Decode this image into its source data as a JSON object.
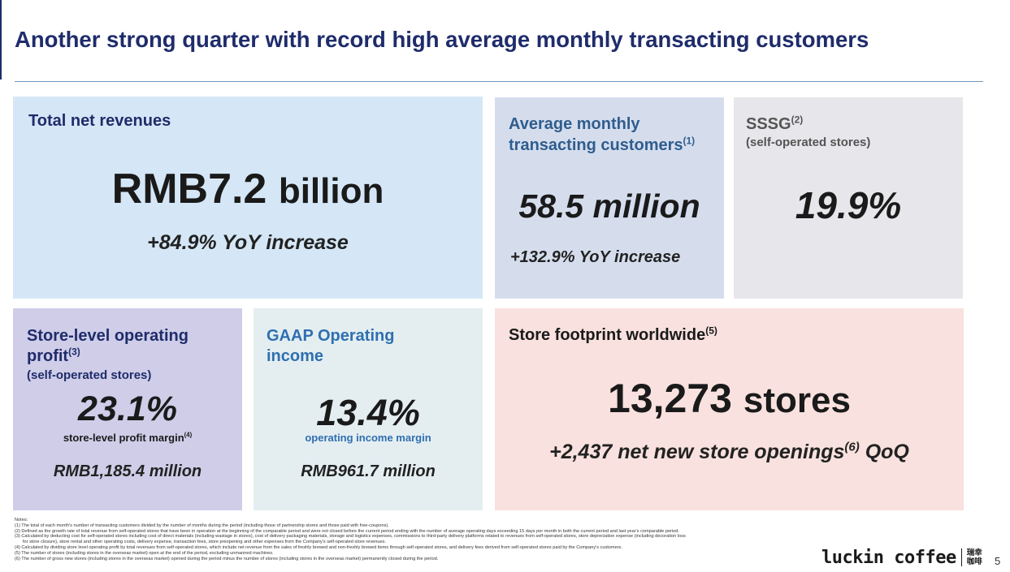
{
  "title": "Another strong quarter with record high average monthly transacting customers",
  "revenue": {
    "label": "Total net revenues",
    "value": "RMB7.2",
    "unit": "billion",
    "growth": "+84.9% YoY increase"
  },
  "mtc": {
    "label_line1": "Average monthly",
    "label_line2": "transacting customers",
    "note_ref": "(1)",
    "value": "58.5 million",
    "growth": "+132.9% YoY increase"
  },
  "sssg": {
    "label": "SSSG",
    "note_ref": "(2)",
    "sub": "(self-operated stores)",
    "value": "19.9%"
  },
  "store_profit": {
    "label_line1": "Store-level operating",
    "label_line2": "profit",
    "note_ref": "(3)",
    "sub": "(self-operated stores)",
    "value": "23.1%",
    "margin_label": "store-level profit margin",
    "margin_note_ref": "(4)",
    "amount": "RMB1,185.4 million"
  },
  "gaap": {
    "label_line1": "GAAP Operating",
    "label_line2": "income",
    "value": "13.4%",
    "margin_label": "operating income margin",
    "amount": "RMB961.7 million"
  },
  "footprint": {
    "label": "Store footprint worldwide",
    "note_ref": "(5)",
    "value": "13,273",
    "unit": "stores",
    "growth_prefix": "+2,437 net new store openings",
    "growth_note_ref": "(6)",
    "growth_suffix": "QoQ"
  },
  "notes": {
    "heading": "Notes:",
    "items": [
      "(1)  The total of each month's number of transacting customers divided by the number of months during the period (including those of partnership stores and those paid with free-coupons).",
      "(2)  Defined as the growth rate of total revenue from self-operated stores that have been in operation at the beginning of the comparable period and were not closed before the current period ending with the number of average operating days exceeding 15 days per month in both the current period and last year's comparable period.",
      "(3)  Calculated by deducting cost for self-operated stores including cost of direct materials (including wastage in stores), cost of delivery packaging materials, storage and logistics expenses, commissions to third-party delivery platforms related to revenues from self-operated stores, store depreciation expense (including decoration loss",
      "for store closure), store rental and other operating costs, delivery expense, transaction fees, store preopening and other expenses from the Company's self-operated store revenues.",
      "(4)  Calculated by dividing store level operating profit by total revenues from self-operated stores, which include net revenue from the sales of freshly brewed and non-freshly brewed items through self-operated stores, and delivery fees derived from self-operated stores paid by the Company's customers.",
      "(5)  The number of stores (including stores in the overseas market) open at the end of the period, excluding unmanned machines.",
      "(6)  The number of gross new stores (including stores in the overseas market) opened during the period minus the number of stores (including stores in the overseas market) permanently closed during the period."
    ]
  },
  "logo": {
    "text": "luckin coffee",
    "cn_line1": "瑞幸",
    "cn_line2": "咖啡"
  },
  "page_number": "5",
  "colors": {
    "title": "#1f2c6b",
    "blue_label": "#2f5d8e",
    "revenue_bg": "#d5e7f6",
    "mtc_bg": "#d5dded",
    "sssg_bg": "#e7e6ea",
    "store_profit_bg": "#cfcde8",
    "gaap_bg": "#e4eef1",
    "footprint_bg": "#f8e1de"
  }
}
